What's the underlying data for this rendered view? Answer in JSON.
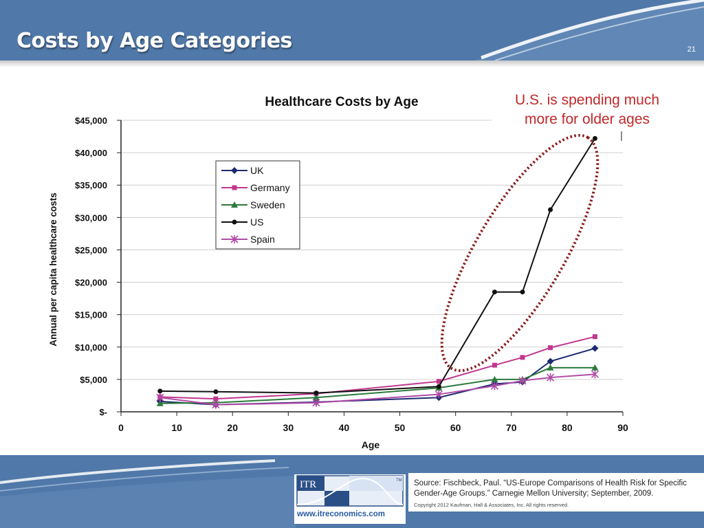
{
  "slide": {
    "title": "Costs by Age Categories",
    "number": "21"
  },
  "annotation": {
    "line1": "U.S. is spending much",
    "line2": "more for older ages",
    "color": "#c0282a"
  },
  "footer": {
    "logo_text": "ITR",
    "logo_tm": "TM",
    "url": "www.itreconomics.com",
    "source": "Source: Fischbeck, Paul. “US-Europe Comparisons of Health Risk for Specific Gender-Age Groups.” Carnegie Mellon University; September, 2009.",
    "copyright": "Copyright 2012 Kaufman, Hall & Associates, Inc. All rights reserved."
  },
  "chart_data": {
    "type": "line",
    "title": "Healthcare Costs by Age",
    "xlabel": "Age",
    "ylabel": "Annual per capita healthcare costs",
    "xlim": [
      0,
      90
    ],
    "ylim": [
      0,
      45000
    ],
    "xticks": [
      "0",
      "10",
      "20",
      "30",
      "40",
      "50",
      "60",
      "70",
      "80",
      "90"
    ],
    "yticks": [
      "$-",
      "$5,000",
      "$10,000",
      "$15,000",
      "$20,000",
      "$25,000",
      "$30,000",
      "$35,000",
      "$40,000",
      "$45,000"
    ],
    "grid": "horizontal",
    "legend_position": "top-left",
    "series": [
      {
        "name": "UK",
        "color": "#1c2a6e",
        "marker": "diamond",
        "x": [
          7,
          17,
          35,
          57,
          67,
          72,
          77,
          85
        ],
        "y": [
          1600,
          1100,
          1500,
          2200,
          4300,
          4600,
          7800,
          9800
        ]
      },
      {
        "name": "Germany",
        "color": "#c0378f",
        "marker": "square",
        "x": [
          7,
          17,
          35,
          57,
          67,
          72,
          77,
          85
        ],
        "y": [
          2300,
          2000,
          2800,
          4700,
          7200,
          8400,
          9900,
          11600
        ]
      },
      {
        "name": "Sweden",
        "color": "#2a7a3a",
        "marker": "triangle",
        "x": [
          7,
          17,
          35,
          57,
          67,
          72,
          77,
          85
        ],
        "y": [
          1300,
          1400,
          2200,
          3700,
          5000,
          5000,
          6800,
          6800
        ]
      },
      {
        "name": "US",
        "color": "#111111",
        "marker": "circle",
        "x": [
          7,
          17,
          35,
          57,
          67,
          72,
          77,
          85
        ],
        "y": [
          3200,
          3100,
          2900,
          3900,
          18500,
          18500,
          31200,
          42200
        ]
      },
      {
        "name": "Spain",
        "color": "#b04aa8",
        "marker": "star",
        "x": [
          7,
          17,
          35,
          57,
          67,
          72,
          77,
          85
        ],
        "y": [
          2200,
          1100,
          1400,
          2700,
          4000,
          4800,
          5300,
          5800
        ]
      }
    ]
  }
}
